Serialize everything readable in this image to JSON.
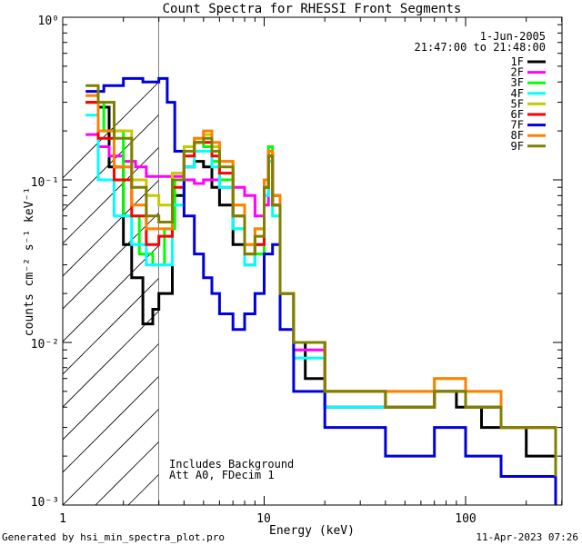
{
  "chart_data": {
    "type": "line",
    "title": "Count Spectra for RHESSI Front Segments",
    "xlabel": "Energy (keV)",
    "ylabel": "counts cm⁻² s⁻¹ keV⁻¹",
    "xscale": "log",
    "yscale": "log",
    "xlim": [
      1.2,
      300
    ],
    "ylim": [
      0.001,
      1
    ],
    "x_ticks": [
      {
        "value": 1,
        "label": "1"
      },
      {
        "value": 10,
        "label": "10"
      },
      {
        "value": 100,
        "label": "100"
      }
    ],
    "y_ticks": [
      {
        "value": 1,
        "label": "10⁰"
      },
      {
        "value": 0.1,
        "label": "10⁻¹"
      },
      {
        "value": 0.01,
        "label": "10⁻²"
      },
      {
        "value": 0.001,
        "label": "10⁻³"
      }
    ],
    "date": "1-Jun-2005",
    "time_range": "21:47:00 to 21:48:00",
    "hatched_below_keV": 3,
    "annotations": [
      "Includes Background",
      "Att A0, FDecim 1"
    ],
    "series": [
      {
        "name": "1F",
        "color": "#000000",
        "points": [
          [
            1.3,
            0.3
          ],
          [
            1.5,
            0.28
          ],
          [
            1.7,
            0.12
          ],
          [
            2.0,
            0.04
          ],
          [
            2.2,
            0.025
          ],
          [
            2.5,
            0.013
          ],
          [
            2.8,
            0.016
          ],
          [
            3.0,
            0.02
          ],
          [
            3.5,
            0.08
          ],
          [
            4.0,
            0.12
          ],
          [
            4.5,
            0.13
          ],
          [
            5.0,
            0.12
          ],
          [
            5.5,
            0.09
          ],
          [
            6.0,
            0.07
          ],
          [
            7.0,
            0.04
          ],
          [
            8.0,
            0.03
          ],
          [
            9.0,
            0.04
          ],
          [
            10.0,
            0.09
          ],
          [
            10.5,
            0.14
          ],
          [
            11.0,
            0.08
          ],
          [
            12.0,
            0.02
          ],
          [
            14.0,
            0.01
          ],
          [
            16.0,
            0.006
          ],
          [
            20.0,
            0.004
          ],
          [
            30.0,
            0.004
          ],
          [
            50.0,
            0.004
          ],
          [
            70.0,
            0.005
          ],
          [
            90.0,
            0.004
          ],
          [
            120.0,
            0.003
          ],
          [
            200.0,
            0.002
          ],
          [
            280.0,
            0.0015
          ]
        ]
      },
      {
        "name": "2F",
        "color": "#ff00ff",
        "points": [
          [
            1.3,
            0.19
          ],
          [
            1.5,
            0.16
          ],
          [
            1.7,
            0.14
          ],
          [
            2.0,
            0.13
          ],
          [
            2.3,
            0.12
          ],
          [
            2.6,
            0.105
          ],
          [
            3.0,
            0.105
          ],
          [
            3.5,
            0.105
          ],
          [
            4.0,
            0.1
          ],
          [
            4.5,
            0.095
          ],
          [
            5.0,
            0.1
          ],
          [
            6.0,
            0.09
          ],
          [
            7.0,
            0.09
          ],
          [
            8.0,
            0.08
          ],
          [
            9.0,
            0.06
          ],
          [
            10.0,
            0.07
          ],
          [
            10.5,
            0.13
          ],
          [
            11.0,
            0.07
          ],
          [
            12.0,
            0.02
          ],
          [
            14.0,
            0.009
          ],
          [
            20.0,
            0.004
          ],
          [
            40.0,
            0.004
          ],
          [
            70.0,
            0.005
          ],
          [
            100.0,
            0.004
          ],
          [
            150.0,
            0.003
          ],
          [
            280.0,
            0.0015
          ]
        ]
      },
      {
        "name": "3F",
        "color": "#00ff00",
        "points": [
          [
            1.3,
            0.3
          ],
          [
            1.6,
            0.2
          ],
          [
            2.0,
            0.06
          ],
          [
            2.4,
            0.035
          ],
          [
            2.8,
            0.03
          ],
          [
            3.2,
            0.05
          ],
          [
            3.6,
            0.1
          ],
          [
            4.0,
            0.15
          ],
          [
            4.5,
            0.17
          ],
          [
            5.0,
            0.16
          ],
          [
            5.5,
            0.13
          ],
          [
            6.0,
            0.1
          ],
          [
            7.0,
            0.05
          ],
          [
            8.0,
            0.03
          ],
          [
            9.0,
            0.035
          ],
          [
            10.0,
            0.09
          ],
          [
            10.5,
            0.16
          ],
          [
            11.0,
            0.07
          ],
          [
            12.0,
            0.02
          ],
          [
            14.0,
            0.01
          ],
          [
            20.0,
            0.005
          ],
          [
            40.0,
            0.004
          ],
          [
            70.0,
            0.005
          ],
          [
            100.0,
            0.004
          ],
          [
            150.0,
            0.003
          ],
          [
            280.0,
            0.0015
          ]
        ]
      },
      {
        "name": "4F",
        "color": "#00ffff",
        "points": [
          [
            1.3,
            0.25
          ],
          [
            1.5,
            0.1
          ],
          [
            1.8,
            0.06
          ],
          [
            2.2,
            0.04
          ],
          [
            2.6,
            0.03
          ],
          [
            3.0,
            0.03
          ],
          [
            3.5,
            0.07
          ],
          [
            4.0,
            0.12
          ],
          [
            4.5,
            0.15
          ],
          [
            5.0,
            0.15
          ],
          [
            5.5,
            0.12
          ],
          [
            6.0,
            0.09
          ],
          [
            7.0,
            0.05
          ],
          [
            8.0,
            0.03
          ],
          [
            9.0,
            0.04
          ],
          [
            10.0,
            0.08
          ],
          [
            10.5,
            0.13
          ],
          [
            11.0,
            0.06
          ],
          [
            12.0,
            0.02
          ],
          [
            14.0,
            0.008
          ],
          [
            20.0,
            0.004
          ],
          [
            40.0,
            0.004
          ],
          [
            70.0,
            0.005
          ],
          [
            100.0,
            0.004
          ],
          [
            150.0,
            0.003
          ],
          [
            280.0,
            0.0015
          ]
        ]
      },
      {
        "name": "5F",
        "color": "#c8c800",
        "points": [
          [
            1.3,
            0.35
          ],
          [
            1.5,
            0.3
          ],
          [
            1.8,
            0.2
          ],
          [
            2.2,
            0.1
          ],
          [
            2.6,
            0.08
          ],
          [
            3.0,
            0.07
          ],
          [
            3.5,
            0.11
          ],
          [
            4.0,
            0.16
          ],
          [
            4.5,
            0.18
          ],
          [
            5.0,
            0.19
          ],
          [
            5.5,
            0.16
          ],
          [
            6.0,
            0.13
          ],
          [
            7.0,
            0.07
          ],
          [
            8.0,
            0.04
          ],
          [
            9.0,
            0.05
          ],
          [
            10.0,
            0.1
          ],
          [
            10.5,
            0.15
          ],
          [
            11.0,
            0.07
          ],
          [
            12.0,
            0.02
          ],
          [
            14.0,
            0.01
          ],
          [
            20.0,
            0.005
          ],
          [
            40.0,
            0.005
          ],
          [
            70.0,
            0.006
          ],
          [
            100.0,
            0.005
          ],
          [
            150.0,
            0.003
          ],
          [
            280.0,
            0.0015
          ]
        ]
      },
      {
        "name": "6F",
        "color": "#ff0000",
        "points": [
          [
            1.3,
            0.3
          ],
          [
            1.5,
            0.18
          ],
          [
            1.8,
            0.1
          ],
          [
            2.2,
            0.06
          ],
          [
            2.6,
            0.04
          ],
          [
            3.0,
            0.045
          ],
          [
            3.5,
            0.09
          ],
          [
            4.0,
            0.14
          ],
          [
            4.5,
            0.17
          ],
          [
            5.0,
            0.17
          ],
          [
            5.5,
            0.14
          ],
          [
            6.0,
            0.11
          ],
          [
            7.0,
            0.06
          ],
          [
            8.0,
            0.035
          ],
          [
            9.0,
            0.04
          ],
          [
            10.0,
            0.09
          ],
          [
            10.5,
            0.14
          ],
          [
            11.0,
            0.07
          ],
          [
            12.0,
            0.02
          ],
          [
            14.0,
            0.01
          ],
          [
            20.0,
            0.005
          ],
          [
            40.0,
            0.004
          ],
          [
            70.0,
            0.005
          ],
          [
            100.0,
            0.004
          ],
          [
            150.0,
            0.003
          ],
          [
            280.0,
            0.0015
          ]
        ]
      },
      {
        "name": "7F",
        "color": "#0000dd",
        "points": [
          [
            1.3,
            0.35
          ],
          [
            1.6,
            0.38
          ],
          [
            2.0,
            0.42
          ],
          [
            2.5,
            0.4
          ],
          [
            3.0,
            0.42
          ],
          [
            3.3,
            0.3
          ],
          [
            3.6,
            0.15
          ],
          [
            4.0,
            0.06
          ],
          [
            4.5,
            0.035
          ],
          [
            5.0,
            0.025
          ],
          [
            5.5,
            0.02
          ],
          [
            6.0,
            0.015
          ],
          [
            7.0,
            0.012
          ],
          [
            8.0,
            0.015
          ],
          [
            9.0,
            0.02
          ],
          [
            10.0,
            0.035
          ],
          [
            11.0,
            0.04
          ],
          [
            12.0,
            0.012
          ],
          [
            14.0,
            0.005
          ],
          [
            20.0,
            0.003
          ],
          [
            40.0,
            0.002
          ],
          [
            70.0,
            0.003
          ],
          [
            100.0,
            0.002
          ],
          [
            150.0,
            0.0015
          ],
          [
            280.0,
            0.001
          ]
        ]
      },
      {
        "name": "8F",
        "color": "#ff8000",
        "points": [
          [
            1.3,
            0.33
          ],
          [
            1.5,
            0.2
          ],
          [
            1.8,
            0.12
          ],
          [
            2.2,
            0.07
          ],
          [
            2.6,
            0.05
          ],
          [
            3.0,
            0.05
          ],
          [
            3.5,
            0.1
          ],
          [
            4.0,
            0.15
          ],
          [
            4.5,
            0.18
          ],
          [
            5.0,
            0.2
          ],
          [
            5.5,
            0.17
          ],
          [
            6.0,
            0.13
          ],
          [
            7.0,
            0.07
          ],
          [
            8.0,
            0.04
          ],
          [
            9.0,
            0.05
          ],
          [
            10.0,
            0.1
          ],
          [
            10.5,
            0.15
          ],
          [
            11.0,
            0.08
          ],
          [
            12.0,
            0.02
          ],
          [
            14.0,
            0.01
          ],
          [
            20.0,
            0.005
          ],
          [
            40.0,
            0.005
          ],
          [
            70.0,
            0.006
          ],
          [
            100.0,
            0.005
          ],
          [
            150.0,
            0.003
          ],
          [
            280.0,
            0.0015
          ]
        ]
      },
      {
        "name": "9F",
        "color": "#808000",
        "points": [
          [
            1.3,
            0.38
          ],
          [
            1.5,
            0.3
          ],
          [
            1.8,
            0.18
          ],
          [
            2.2,
            0.09
          ],
          [
            2.6,
            0.06
          ],
          [
            3.0,
            0.055
          ],
          [
            3.5,
            0.1
          ],
          [
            4.0,
            0.15
          ],
          [
            4.5,
            0.17
          ],
          [
            5.0,
            0.18
          ],
          [
            5.5,
            0.15
          ],
          [
            6.0,
            0.12
          ],
          [
            7.0,
            0.06
          ],
          [
            8.0,
            0.035
          ],
          [
            9.0,
            0.045
          ],
          [
            10.0,
            0.09
          ],
          [
            10.5,
            0.14
          ],
          [
            11.0,
            0.07
          ],
          [
            12.0,
            0.02
          ],
          [
            14.0,
            0.01
          ],
          [
            20.0,
            0.005
          ],
          [
            40.0,
            0.004
          ],
          [
            70.0,
            0.005
          ],
          [
            100.0,
            0.004
          ],
          [
            150.0,
            0.003
          ],
          [
            280.0,
            0.0015
          ]
        ]
      }
    ]
  },
  "footer": {
    "generated_by": "Generated by hsi_min_spectra_plot.pro",
    "timestamp": "11-Apr-2023 07:26"
  }
}
